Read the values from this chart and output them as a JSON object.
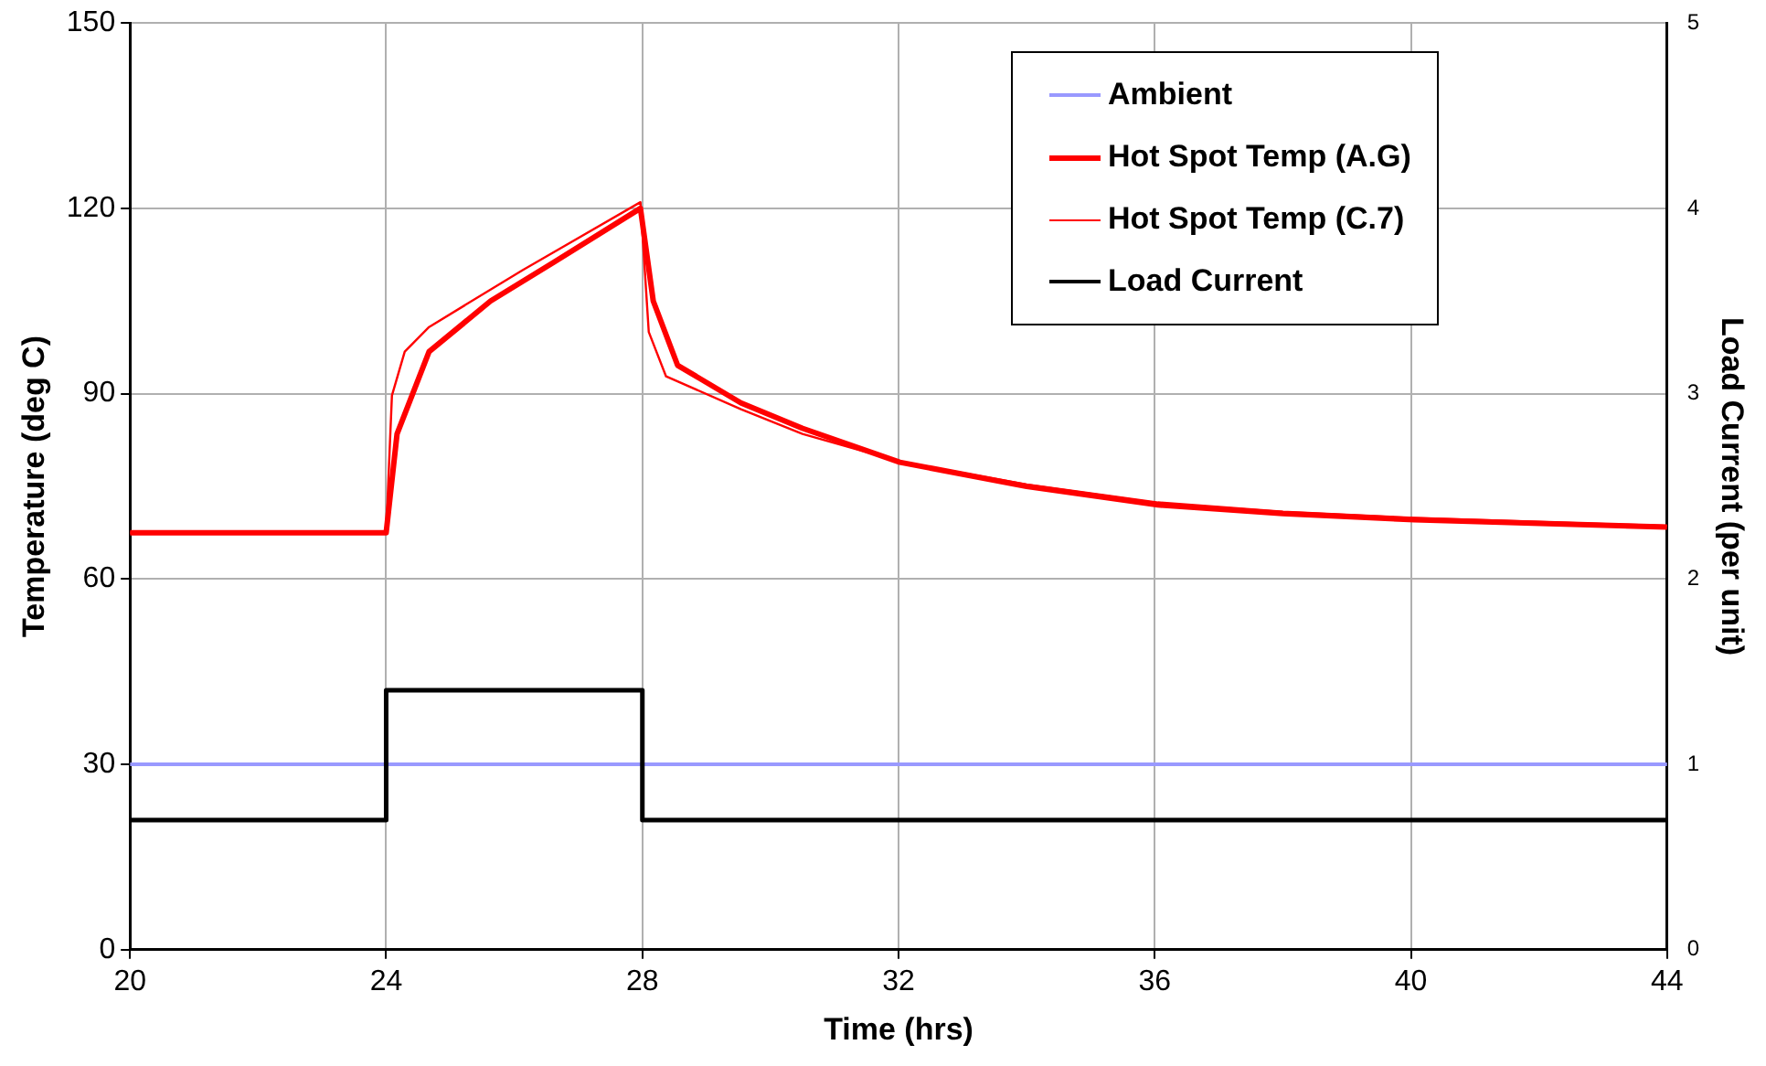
{
  "chart_data": {
    "type": "line",
    "xlabel": "Time (hrs)",
    "ylabel": "Temperature (deg C)",
    "y2label": "Load Current (per unit)",
    "xlim": [
      20,
      44
    ],
    "xticks": [
      20,
      24,
      28,
      32,
      36,
      40,
      44
    ],
    "ylim": [
      0,
      150
    ],
    "yticks": [
      0,
      30,
      60,
      90,
      120,
      150
    ],
    "y2lim": [
      0,
      5
    ],
    "y2ticks": [
      0,
      1,
      2,
      3,
      4,
      5
    ],
    "grid": true,
    "legend": "top right",
    "marker": "none",
    "line_style": "solid",
    "series": [
      {
        "name": "Ambient",
        "color": "#9999ff",
        "x": [
          20,
          44
        ],
        "values": [
          30,
          30
        ]
      },
      {
        "name": "Hot Spot Temp (A.G)",
        "color": "#ff0000",
        "x": [
          20,
          24,
          24.17,
          24.67,
          25.63,
          26.62,
          27.97,
          28.17,
          28.55,
          29.54,
          30.5,
          32.02,
          34,
          36.05,
          38,
          40.05,
          44
        ],
        "values": [
          67.5,
          67.5,
          83.5,
          96.8,
          105,
          111.3,
          120,
          105,
          94.6,
          88.5,
          84.4,
          78.9,
          75,
          72,
          70.6,
          69.6,
          68.4
        ]
      },
      {
        "name": "Hot Spot Temp (C.7)",
        "color": "#ff0000",
        "x": [
          20,
          24,
          24.09,
          24.29,
          24.67,
          26.13,
          27.97,
          28.1,
          28.37,
          29.54,
          30.5,
          32.02,
          34,
          36.05,
          38,
          40.05,
          44
        ],
        "values": [
          67.5,
          67.5,
          89.7,
          96.8,
          100.8,
          110,
          121,
          100,
          92.8,
          87.5,
          83.5,
          79,
          75.3,
          72.4,
          70.9,
          69.9,
          68.6
        ]
      },
      {
        "name": "Load Current",
        "color": "#000000",
        "axis": "y2",
        "x": [
          20,
          24,
          24,
          28,
          28,
          44
        ],
        "values": [
          0.7,
          0.7,
          1.4,
          1.4,
          0.7,
          0.7
        ]
      }
    ]
  }
}
